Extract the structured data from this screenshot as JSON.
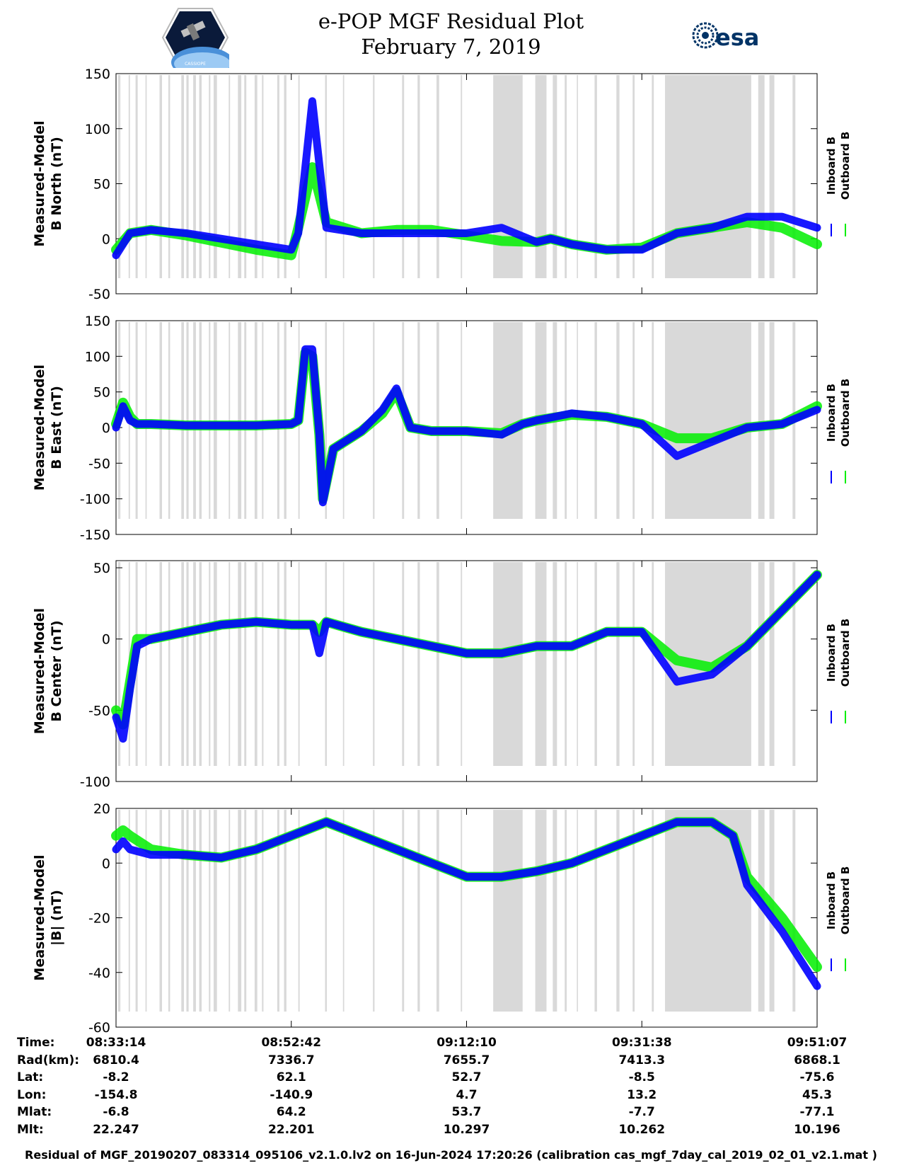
{
  "title": {
    "line1": "e-POP MGF Residual Plot",
    "line2": "February 7, 2019"
  },
  "logos": {
    "left_text": "CASSIOPE",
    "right_text": "esa"
  },
  "colors": {
    "inboard": "#0000ff",
    "outboard": "#00ee00",
    "gaps": "#d9d9d9"
  },
  "legend": {
    "inboard": "Inboard B",
    "outboard": "Outboard B"
  },
  "footer": "Residual of MGF_20190207_083314_095106_v2.1.0.lv2 on 16-Jun-2024 17:20:26 (calibration cas_mgf_7day_cal_2019_02_01_v2.1.mat )",
  "info_table": {
    "labels": [
      "Time:",
      "Rad(km):",
      "Lat:",
      "Lon:",
      "Mlat:",
      "Mlt:"
    ],
    "columns": [
      [
        "08:33:14",
        "6810.4",
        "-8.2",
        "-154.8",
        "-6.8",
        "22.247"
      ],
      [
        "08:52:42",
        "7336.7",
        "62.1",
        "-140.9",
        "64.2",
        "22.201"
      ],
      [
        "09:12:10",
        "7655.7",
        "52.7",
        "4.7",
        "53.7",
        "10.297"
      ],
      [
        "09:31:38",
        "7413.3",
        "-8.5",
        "13.2",
        "-7.7",
        "10.262"
      ],
      [
        "09:51:07",
        "6868.1",
        "-75.6",
        "45.3",
        "-77.1",
        "10.196"
      ]
    ]
  },
  "chart_data": [
    {
      "type": "line",
      "ylabel_line1": "Measured-Model",
      "ylabel_line2": "B North (nT)",
      "ylim": [
        -50,
        150
      ],
      "yticks": [
        -50,
        0,
        50,
        100,
        150
      ],
      "xlim": [
        0,
        100
      ],
      "series": [
        {
          "name": "Outboard B",
          "x": [
            0,
            2,
            5,
            10,
            20,
            25,
            26,
            28,
            30,
            35,
            40,
            45,
            50,
            55,
            60,
            62,
            65,
            70,
            75,
            80,
            85,
            90,
            95,
            100
          ],
          "y": [
            -10,
            5,
            8,
            3,
            -10,
            -15,
            10,
            65,
            15,
            5,
            8,
            8,
            3,
            -2,
            -3,
            0,
            -5,
            -10,
            -8,
            5,
            10,
            15,
            10,
            -5
          ]
        },
        {
          "name": "Inboard B",
          "x": [
            0,
            2,
            5,
            10,
            20,
            25,
            26,
            28,
            30,
            35,
            40,
            45,
            50,
            55,
            60,
            62,
            65,
            70,
            75,
            80,
            85,
            90,
            95,
            100
          ],
          "y": [
            -15,
            5,
            8,
            5,
            -5,
            -10,
            5,
            125,
            10,
            5,
            5,
            5,
            5,
            10,
            -3,
            0,
            -5,
            -10,
            -10,
            5,
            10,
            20,
            20,
            10
          ]
        }
      ]
    },
    {
      "type": "line",
      "ylabel_line1": "Measured-Model",
      "ylabel_line2": "B East (nT)",
      "ylim": [
        -150,
        150
      ],
      "yticks": [
        -150,
        -100,
        -50,
        0,
        50,
        100,
        150
      ],
      "xlim": [
        0,
        100
      ],
      "series": [
        {
          "name": "Outboard B",
          "x": [
            0,
            1,
            2,
            3,
            5,
            10,
            20,
            25,
            26,
            27,
            28,
            29,
            29.5,
            31,
            35,
            38,
            40,
            42,
            45,
            50,
            55,
            58,
            60,
            65,
            70,
            75,
            80,
            85,
            90,
            95,
            100
          ],
          "y": [
            5,
            35,
            15,
            5,
            5,
            3,
            3,
            5,
            10,
            105,
            100,
            -10,
            -100,
            -30,
            -5,
            20,
            50,
            0,
            -5,
            -5,
            -8,
            5,
            10,
            18,
            15,
            5,
            -15,
            -15,
            0,
            5,
            30
          ]
        },
        {
          "name": "Inboard B",
          "x": [
            0,
            1,
            2,
            3,
            5,
            10,
            20,
            25,
            26,
            27,
            28,
            29,
            29.5,
            31,
            35,
            38,
            40,
            42,
            45,
            50,
            55,
            58,
            60,
            65,
            70,
            75,
            80,
            85,
            90,
            95,
            100
          ],
          "y": [
            0,
            30,
            10,
            5,
            5,
            3,
            3,
            5,
            10,
            110,
            110,
            -10,
            -105,
            -30,
            -5,
            25,
            55,
            0,
            -5,
            -5,
            -10,
            5,
            10,
            20,
            15,
            5,
            -40,
            -20,
            0,
            5,
            25
          ]
        }
      ]
    },
    {
      "type": "line",
      "ylabel_line1": "Measured-Model",
      "ylabel_line2": "B Center (nT)",
      "ylim": [
        -100,
        55
      ],
      "yticks": [
        -100,
        -50,
        0,
        50
      ],
      "xlim": [
        0,
        100
      ],
      "series": [
        {
          "name": "Outboard B",
          "x": [
            0,
            1,
            2,
            3,
            5,
            10,
            15,
            20,
            25,
            28,
            29,
            30,
            35,
            40,
            45,
            50,
            55,
            60,
            65,
            70,
            75,
            80,
            85,
            90,
            95,
            100
          ],
          "y": [
            -50,
            -60,
            -30,
            0,
            0,
            5,
            10,
            12,
            10,
            10,
            5,
            12,
            5,
            0,
            -5,
            -10,
            -10,
            -5,
            -5,
            5,
            5,
            -15,
            -20,
            -5,
            20,
            45
          ]
        },
        {
          "name": "Inboard B",
          "x": [
            0,
            1,
            2,
            3,
            5,
            10,
            15,
            20,
            25,
            28,
            29,
            30,
            35,
            40,
            45,
            50,
            55,
            60,
            65,
            70,
            75,
            80,
            85,
            90,
            95,
            100
          ],
          "y": [
            -55,
            -70,
            -35,
            -5,
            0,
            5,
            10,
            12,
            10,
            10,
            -10,
            12,
            5,
            0,
            -5,
            -10,
            -10,
            -5,
            -5,
            5,
            5,
            -30,
            -25,
            -5,
            20,
            45
          ]
        }
      ]
    },
    {
      "type": "line",
      "ylabel_line1": "Measured-Model",
      "ylabel_line2": "|B| (nT)",
      "ylim": [
        -60,
        20
      ],
      "yticks": [
        -60,
        -40,
        -20,
        0,
        20
      ],
      "xlim": [
        0,
        100
      ],
      "series": [
        {
          "name": "Outboard B",
          "x": [
            0,
            1,
            2,
            5,
            10,
            15,
            20,
            25,
            28,
            30,
            35,
            40,
            45,
            50,
            55,
            60,
            65,
            70,
            75,
            80,
            85,
            88,
            90,
            95,
            100
          ],
          "y": [
            10,
            12,
            10,
            5,
            3,
            2,
            5,
            10,
            13,
            15,
            10,
            5,
            0,
            -5,
            -5,
            -3,
            0,
            5,
            10,
            15,
            15,
            10,
            -5,
            -20,
            -38
          ]
        },
        {
          "name": "Inboard B",
          "x": [
            0,
            1,
            2,
            5,
            10,
            15,
            20,
            25,
            28,
            30,
            35,
            40,
            45,
            50,
            55,
            60,
            65,
            70,
            75,
            80,
            85,
            88,
            90,
            95,
            100
          ],
          "y": [
            5,
            8,
            5,
            3,
            3,
            2,
            5,
            10,
            13,
            15,
            10,
            5,
            0,
            -5,
            -5,
            -3,
            0,
            5,
            10,
            15,
            15,
            10,
            -8,
            -25,
            -45
          ]
        }
      ]
    }
  ]
}
